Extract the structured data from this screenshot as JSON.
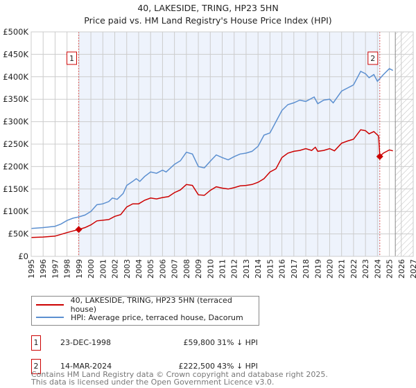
{
  "chart_data": {
    "type": "line",
    "title": "40, LAKESIDE, TRING, HP23 5HN",
    "subtitle": "Price paid vs. HM Land Registry's House Price Index (HPI)",
    "xlim": [
      1995,
      2027
    ],
    "ylim": [
      0,
      500000
    ],
    "x_ticks": [
      "1995",
      "1996",
      "1997",
      "1998",
      "1999",
      "2000",
      "2001",
      "2002",
      "2003",
      "2004",
      "2005",
      "2006",
      "2007",
      "2008",
      "2009",
      "2010",
      "2011",
      "2012",
      "2013",
      "2014",
      "2015",
      "2016",
      "2017",
      "2018",
      "2019",
      "2020",
      "2021",
      "2022",
      "2023",
      "2024",
      "2025",
      "2026",
      "2027"
    ],
    "y_ticks": [
      {
        "value": 0,
        "label": "£0"
      },
      {
        "value": 50000,
        "label": "£50K"
      },
      {
        "value": 100000,
        "label": "£100K"
      },
      {
        "value": 150000,
        "label": "£150K"
      },
      {
        "value": 200000,
        "label": "£200K"
      },
      {
        "value": 250000,
        "label": "£250K"
      },
      {
        "value": 300000,
        "label": "£300K"
      },
      {
        "value": 350000,
        "label": "£350K"
      },
      {
        "value": 400000,
        "label": "£400K"
      },
      {
        "value": 450000,
        "label": "£450K"
      },
      {
        "value": 500000,
        "label": "£500K"
      }
    ],
    "grid": true,
    "shaded_range": [
      1998.98,
      2024.2
    ],
    "forecast_hatch_from": 2025.5,
    "series": [
      {
        "name": "40, LAKESIDE, TRING, HP23 5HN (terraced house)",
        "color": "#cc0000",
        "points": [
          [
            1995,
            42
          ],
          [
            1996,
            43
          ],
          [
            1997,
            45
          ],
          [
            1998,
            53
          ],
          [
            1998.98,
            59.8
          ],
          [
            1999.5,
            64
          ],
          [
            2000,
            70
          ],
          [
            2000.5,
            79
          ],
          [
            2001.5,
            82
          ],
          [
            2002,
            89
          ],
          [
            2002.5,
            93
          ],
          [
            2003,
            110
          ],
          [
            2003.5,
            117
          ],
          [
            2004,
            117
          ],
          [
            2004.5,
            125
          ],
          [
            2005,
            130
          ],
          [
            2005.5,
            128
          ],
          [
            2006,
            131
          ],
          [
            2006.5,
            133
          ],
          [
            2007,
            142
          ],
          [
            2007.5,
            148
          ],
          [
            2008,
            160
          ],
          [
            2008.5,
            158
          ],
          [
            2009,
            137
          ],
          [
            2009.5,
            136
          ],
          [
            2010,
            147
          ],
          [
            2010.5,
            155
          ],
          [
            2011,
            152
          ],
          [
            2011.5,
            150
          ],
          [
            2012,
            153
          ],
          [
            2012.5,
            157
          ],
          [
            2013,
            158
          ],
          [
            2013.5,
            160
          ],
          [
            2014,
            165
          ],
          [
            2014.5,
            173
          ],
          [
            2015,
            188
          ],
          [
            2015.5,
            195
          ],
          [
            2016,
            220
          ],
          [
            2016.5,
            230
          ],
          [
            2017,
            234
          ],
          [
            2017.5,
            236
          ],
          [
            2018,
            240
          ],
          [
            2018.5,
            236
          ],
          [
            2018.8,
            243
          ],
          [
            2019,
            234
          ],
          [
            2019.5,
            236
          ],
          [
            2020,
            240
          ],
          [
            2020.4,
            235
          ],
          [
            2021,
            252
          ],
          [
            2021.5,
            257
          ],
          [
            2022,
            261
          ],
          [
            2022.6,
            282
          ],
          [
            2023,
            280
          ],
          [
            2023.3,
            273
          ],
          [
            2023.7,
            278
          ],
          [
            2024.1,
            268
          ],
          [
            2024.2,
            222.5
          ],
          [
            2024.5,
            230
          ],
          [
            2025,
            237
          ],
          [
            2025.3,
            235
          ]
        ]
      },
      {
        "name": "HPI: Average price, terraced house, Dacorum",
        "color": "#5b8fd0",
        "points": [
          [
            1995,
            62
          ],
          [
            1996,
            64
          ],
          [
            1997,
            67
          ],
          [
            1997.5,
            72
          ],
          [
            1998,
            80
          ],
          [
            1998.5,
            85
          ],
          [
            1999,
            88
          ],
          [
            1999.5,
            92
          ],
          [
            2000,
            100
          ],
          [
            2000.5,
            115
          ],
          [
            2001,
            117
          ],
          [
            2001.5,
            122
          ],
          [
            2001.8,
            130
          ],
          [
            2002.2,
            127
          ],
          [
            2002.7,
            140
          ],
          [
            2003,
            158
          ],
          [
            2003.5,
            167
          ],
          [
            2003.8,
            173
          ],
          [
            2004.1,
            167
          ],
          [
            2004.5,
            178
          ],
          [
            2005,
            188
          ],
          [
            2005.5,
            185
          ],
          [
            2006,
            192
          ],
          [
            2006.3,
            188
          ],
          [
            2007,
            205
          ],
          [
            2007.5,
            213
          ],
          [
            2008,
            232
          ],
          [
            2008.5,
            228
          ],
          [
            2009,
            200
          ],
          [
            2009.5,
            197
          ],
          [
            2010,
            212
          ],
          [
            2010.5,
            226
          ],
          [
            2011,
            220
          ],
          [
            2011.5,
            215
          ],
          [
            2012,
            222
          ],
          [
            2012.5,
            228
          ],
          [
            2013,
            230
          ],
          [
            2013.5,
            234
          ],
          [
            2014,
            245
          ],
          [
            2014.5,
            270
          ],
          [
            2015,
            275
          ],
          [
            2015.5,
            300
          ],
          [
            2016,
            325
          ],
          [
            2016.5,
            338
          ],
          [
            2017,
            342
          ],
          [
            2017.5,
            348
          ],
          [
            2018,
            345
          ],
          [
            2018.7,
            355
          ],
          [
            2019,
            340
          ],
          [
            2019.5,
            348
          ],
          [
            2020,
            350
          ],
          [
            2020.3,
            342
          ],
          [
            2021,
            368
          ],
          [
            2021.5,
            375
          ],
          [
            2022,
            382
          ],
          [
            2022.6,
            412
          ],
          [
            2023,
            407
          ],
          [
            2023.3,
            398
          ],
          [
            2023.7,
            405
          ],
          [
            2024,
            390
          ],
          [
            2024.5,
            405
          ],
          [
            2025,
            418
          ],
          [
            2025.3,
            414
          ]
        ]
      }
    ],
    "sales": [
      {
        "id": "1",
        "x": 1998.98,
        "y": 59.8
      },
      {
        "id": "2",
        "x": 2024.2,
        "y": 222.5
      }
    ],
    "y_units": "thousands GBP"
  },
  "legend": {
    "property": "40, LAKESIDE, TRING, HP23 5HN (terraced house)",
    "hpi": "HPI: Average price, terraced house, Dacorum"
  },
  "transactions": [
    {
      "id": "1",
      "date": "23-DEC-1998",
      "price": "£59,800",
      "hpi": "31% ↓ HPI"
    },
    {
      "id": "2",
      "date": "14-MAR-2024",
      "price": "£222,500",
      "hpi": "43% ↓ HPI"
    }
  ],
  "footer": {
    "line1": "Contains HM Land Registry data © Crown copyright and database right 2025.",
    "line2": "This data is licensed under the Open Government Licence v3.0."
  }
}
